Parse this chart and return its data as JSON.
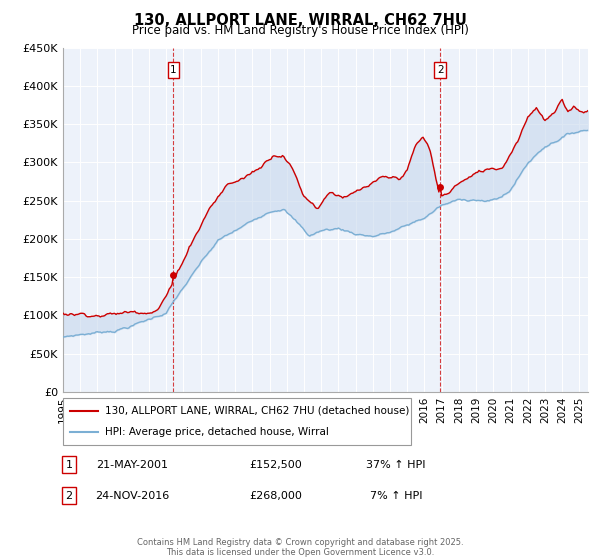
{
  "title": "130, ALLPORT LANE, WIRRAL, CH62 7HU",
  "subtitle": "Price paid vs. HM Land Registry's House Price Index (HPI)",
  "ylim": [
    0,
    450000
  ],
  "yticks": [
    0,
    50000,
    100000,
    150000,
    200000,
    250000,
    300000,
    350000,
    400000,
    450000
  ],
  "ytick_labels": [
    "£0",
    "£50K",
    "£100K",
    "£150K",
    "£200K",
    "£250K",
    "£300K",
    "£350K",
    "£400K",
    "£450K"
  ],
  "property_color": "#cc0000",
  "hpi_color": "#7bafd4",
  "hpi_fill_color": "#c8d8ed",
  "background_color": "#edf2fa",
  "sale1_date_num": 2001.38,
  "sale1_price": 152500,
  "sale2_date_num": 2016.9,
  "sale2_price": 268000,
  "sale1_annotation": "21-MAY-2001",
  "sale1_price_str": "£152,500",
  "sale1_hpi_str": "37% ↑ HPI",
  "sale2_annotation": "24-NOV-2016",
  "sale2_price_str": "£268,000",
  "sale2_hpi_str": "7% ↑ HPI",
  "legend_label1": "130, ALLPORT LANE, WIRRAL, CH62 7HU (detached house)",
  "legend_label2": "HPI: Average price, detached house, Wirral",
  "copyright_text": "Contains HM Land Registry data © Crown copyright and database right 2025.\nThis data is licensed under the Open Government Licence v3.0.",
  "xtick_start": 1995,
  "xtick_end": 2025,
  "figsize": [
    6.0,
    5.6
  ],
  "dpi": 100
}
